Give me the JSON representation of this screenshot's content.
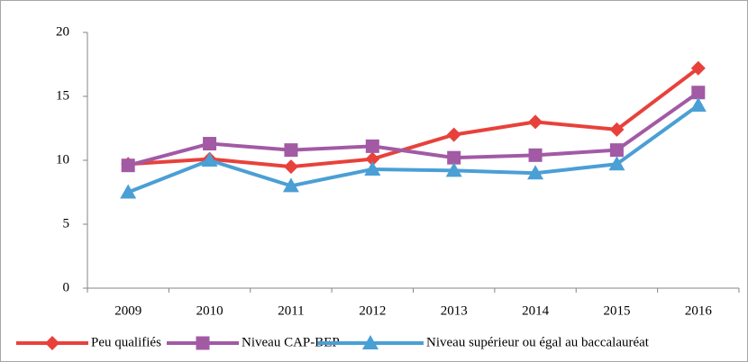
{
  "chart_data": {
    "type": "line",
    "categories": [
      "2009",
      "2010",
      "2011",
      "2012",
      "2013",
      "2014",
      "2015",
      "2016"
    ],
    "series": [
      {
        "name": "Peu qualifiés",
        "color": "#e8413b",
        "marker": "diamond",
        "values": [
          9.7,
          10.1,
          9.5,
          10.1,
          12.0,
          13.0,
          12.4,
          17.2
        ]
      },
      {
        "name": "Niveau CAP-BEP",
        "color": "#a25aa5",
        "marker": "square",
        "values": [
          9.6,
          11.3,
          10.8,
          11.1,
          10.2,
          10.4,
          10.8,
          15.3
        ]
      },
      {
        "name": "Niveau supérieur ou égal au baccalauréat",
        "color": "#4a9fd5",
        "marker": "triangle",
        "values": [
          7.5,
          10.0,
          8.0,
          9.3,
          9.2,
          9.0,
          9.7,
          14.3
        ]
      }
    ],
    "ylim": [
      0,
      20
    ],
    "yticks": [
      0,
      5,
      10,
      15,
      20
    ],
    "grid": false,
    "legend": "bottom"
  }
}
